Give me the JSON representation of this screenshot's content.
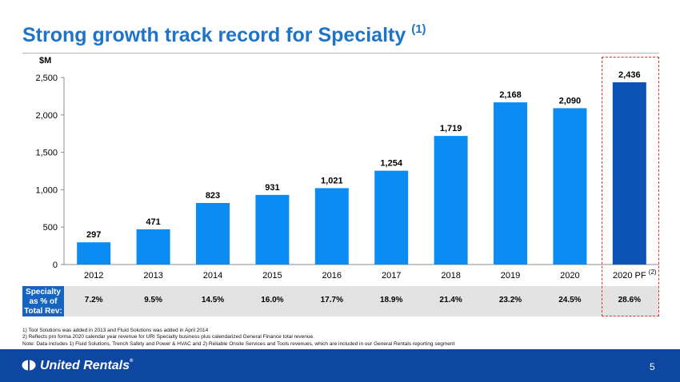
{
  "title": "Strong growth track record for Specialty",
  "title_note": "(1)",
  "unit_label": "$M",
  "chart_data": {
    "type": "bar",
    "categories": [
      "2012",
      "2013",
      "2014",
      "2015",
      "2016",
      "2017",
      "2018",
      "2019",
      "2020",
      "2020 PF"
    ],
    "category_note": "(2)",
    "values": [
      297,
      471,
      823,
      931,
      1021,
      1254,
      1719,
      2168,
      2090,
      2436
    ],
    "value_labels": [
      "297",
      "471",
      "823",
      "931",
      "1,021",
      "1,254",
      "1,719",
      "2,168",
      "2,090",
      "2,436"
    ],
    "y_ticks": [
      0,
      500,
      1000,
      1500,
      2000,
      2500
    ],
    "y_tick_labels": [
      "0",
      "500",
      "1,000",
      "1,500",
      "2,000",
      "2,500"
    ],
    "ylim": [
      0,
      2500
    ],
    "grid": false,
    "colors": {
      "bar": "#0a8cf2",
      "bar_highlight": "#0d52b5"
    },
    "highlight_category": "2020 PF"
  },
  "specialty_pct": {
    "label": [
      "Specialty",
      "as % of",
      "Total Rev:"
    ],
    "values": [
      "7.2%",
      "9.5%",
      "14.5%",
      "16.0%",
      "17.7%",
      "18.9%",
      "21.4%",
      "23.2%",
      "24.5%",
      "28.6%"
    ]
  },
  "notes": [
    "1)    Tool Solutions was added in 2013 and Fluid Solutions was added in April 2014",
    "2)    Reflects pro forma 2020 calendar year revenue for URI Specialty business plus calendarized General Finance total revenue.",
    "Note: Data includes 1) Fluid Solutions, Trench Safety and Power & HVAC and 2) Reliable  Onsite Services and Tools revenues, which are included in our General Rentals reporting segment"
  ],
  "footer": {
    "brand": "United Rentals",
    "trademark": "®",
    "page_number": "5"
  }
}
